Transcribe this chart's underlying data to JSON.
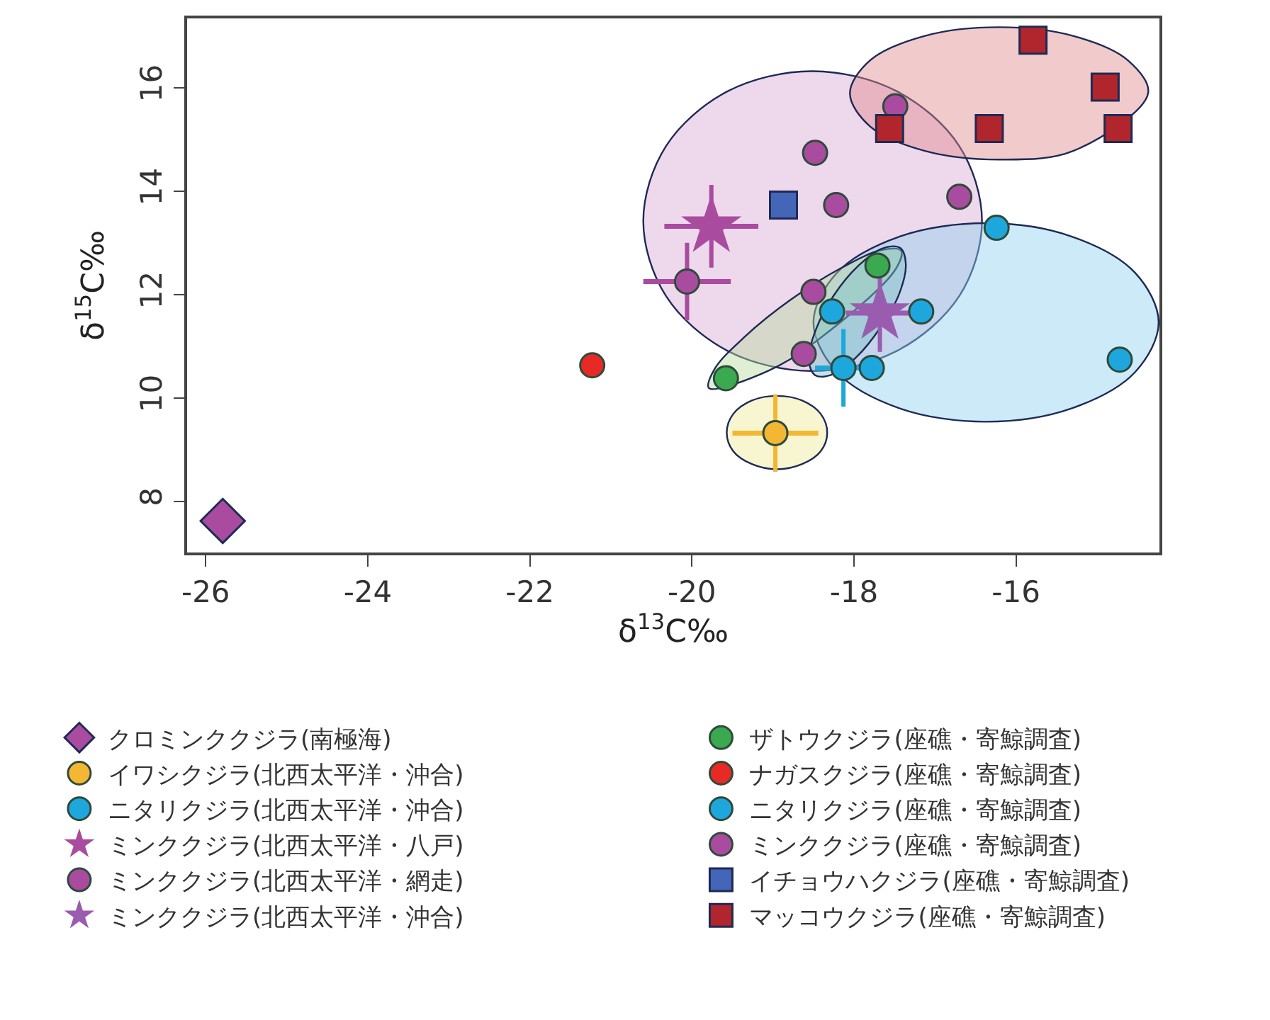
{
  "chart_data": {
    "type": "scatter",
    "xlabel": "δ$^{13}$C‰",
    "ylabel": "δ$^{15}$C‰",
    "xlim": [
      -26.23,
      -14.23
    ],
    "ylim": [
      7.01,
      17.34
    ],
    "xticks": [
      -26,
      -24,
      -22,
      -20,
      -18,
      -16
    ],
    "yticks": [
      8,
      10,
      12,
      14,
      16
    ],
    "grid": false,
    "legend": "bottom",
    "series": [
      {
        "type": "area",
        "color": "#d9a8d4",
        "x": [
          -16.42,
          -16.7,
          -17.47,
          -18.51,
          -19.56,
          -20.32,
          -20.6,
          -20.32,
          -19.56,
          -18.51,
          -17.47,
          -16.7
        ],
        "values": [
          13.42,
          14.87,
          15.93,
          16.32,
          15.93,
          14.87,
          13.42,
          11.97,
          10.91,
          10.52,
          10.91,
          11.97
        ]
      },
      {
        "type": "area",
        "color": "#e08a8e",
        "x": [
          -14.37,
          -14.62,
          -15.29,
          -16.21,
          -17.13,
          -17.8,
          -18.05,
          -17.8,
          -17.13,
          -16.21,
          -15.29
        ],
        "values": [
          15.89,
          16.53,
          17.0,
          17.17,
          17.0,
          16.53,
          15.89,
          15.25,
          14.78,
          14.61,
          14.78
        ]
      },
      {
        "type": "area",
        "color": "#8fd0ee",
        "x": [
          -14.24,
          -14.53,
          -15.31,
          -16.37,
          -17.44,
          -18.21,
          -18.5,
          -18.21,
          -17.44,
          -16.37,
          -15.31,
          -14.53
        ],
        "values": [
          11.46,
          12.42,
          13.12,
          13.38,
          13.12,
          12.42,
          11.46,
          10.5,
          9.8,
          9.54,
          9.8,
          10.5
        ]
      },
      {
        "type": "area",
        "color": "#f0ec9a",
        "x": [
          -18.33,
          -18.41,
          -18.64,
          -18.95,
          -19.26,
          -19.49,
          -19.57,
          -19.49,
          -19.26,
          -18.95,
          -18.64,
          -18.41
        ],
        "values": [
          9.33,
          9.69,
          9.95,
          10.04,
          9.95,
          9.69,
          9.33,
          8.97,
          8.72,
          8.62,
          8.72,
          8.97
        ]
      },
      {
        "type": "area",
        "color": "#b8dca0",
        "x": [
          -17.42,
          -17.49,
          -18.43,
          -19.05,
          -19.79,
          -19.72,
          -19.35,
          -18.78,
          -18.16,
          -17.66
        ],
        "values": [
          12.85,
          12.48,
          11.14,
          10.53,
          10.19,
          10.56,
          11.18,
          11.9,
          12.51,
          12.86
        ]
      },
      {
        "type": "area",
        "color": "#7fc4c8",
        "x": [
          -17.43,
          -17.36,
          -17.44,
          -17.67,
          -17.97,
          -18.27,
          -18.48,
          -18.56,
          -18.47,
          -18.25,
          -17.95,
          -17.65
        ],
        "values": [
          12.9,
          12.59,
          12.02,
          11.37,
          10.79,
          10.45,
          10.44,
          10.75,
          11.32,
          11.98,
          12.55,
          12.89
        ]
      },
      {
        "name": "クロミンククジラ(南極海)",
        "color": "#a94ca0",
        "marker": "diamond",
        "x": [
          -25.79
        ],
        "values": [
          7.62
        ]
      },
      {
        "name": "イワシクジラ(北西太平洋・沖合)",
        "color": "#f4b733",
        "marker": "circle",
        "x": [
          -18.97
        ],
        "values": [
          9.32
        ],
        "errors": [
          0.75
        ],
        "xerrors": [
          0.53
        ]
      },
      {
        "name": "ニタリクジラ(北西太平洋・沖合)",
        "color": "#1ea7dc",
        "marker": "circle",
        "x": [
          -18.13
        ],
        "values": [
          10.58
        ],
        "errors": [
          0.75
        ],
        "xerrors": [
          0.35
        ]
      },
      {
        "name": "ミンククジラ(北西太平洋・八戸)",
        "color": "#a94ca0",
        "marker": "star",
        "x": [
          -19.76
        ],
        "values": [
          13.32
        ],
        "errors": [
          0.8
        ],
        "xerrors": [
          0.58
        ]
      },
      {
        "name": "ミンククジラ(北西太平洋・網走)",
        "color": "#a94ca0",
        "marker": "circle",
        "x": [
          -20.06
        ],
        "values": [
          12.25
        ],
        "errors": [
          0.75
        ],
        "xerrors": [
          0.54
        ]
      },
      {
        "name": "ミンククジラ(北西太平洋・沖合)",
        "color": "#9a5cae",
        "marker": "star",
        "x": [
          -17.68
        ],
        "values": [
          11.64
        ],
        "errors": [
          0.75
        ],
        "xerrors": [
          0.42
        ]
      },
      {
        "name": "ザトウクジラ(座礁・寄鯨調査)",
        "color": "#3aa94f",
        "marker": "circle",
        "x": [
          -19.58,
          -17.71
        ],
        "values": [
          10.38,
          12.56
        ]
      },
      {
        "name": "ナガスクジラ(座礁・寄鯨調査)",
        "color": "#e82a27",
        "marker": "circle",
        "x": [
          -21.23
        ],
        "values": [
          10.63
        ]
      },
      {
        "name": "ニタリクジラ(座礁・寄鯨調査)",
        "color": "#1ea7dc",
        "marker": "circle",
        "x": [
          -18.27,
          -17.17,
          -17.78,
          -16.24,
          -14.72
        ],
        "values": [
          11.67,
          11.67,
          10.58,
          13.29,
          10.74
        ]
      },
      {
        "name": "ミンククジラ(座礁・寄鯨調査)",
        "color": "#a94ca0",
        "marker": "circle",
        "x": [
          -17.49,
          -18.48,
          -18.22,
          -16.7,
          -18.5,
          -18.62
        ],
        "values": [
          15.64,
          14.74,
          13.73,
          13.89,
          12.05,
          10.85
        ]
      },
      {
        "name": "イチョウハクジラ(座礁・寄鯨調査)",
        "color": "#4466b8",
        "marker": "square",
        "x": [
          -18.87
        ],
        "values": [
          13.73
        ]
      },
      {
        "name": "マッコウクジラ(座礁・寄鯨調査)",
        "color": "#b0262c",
        "marker": "square",
        "x": [
          -15.79,
          -14.9,
          -14.74,
          -16.33,
          -17.56
        ],
        "values": [
          16.92,
          16.01,
          15.21,
          15.21,
          15.21
        ]
      }
    ]
  }
}
